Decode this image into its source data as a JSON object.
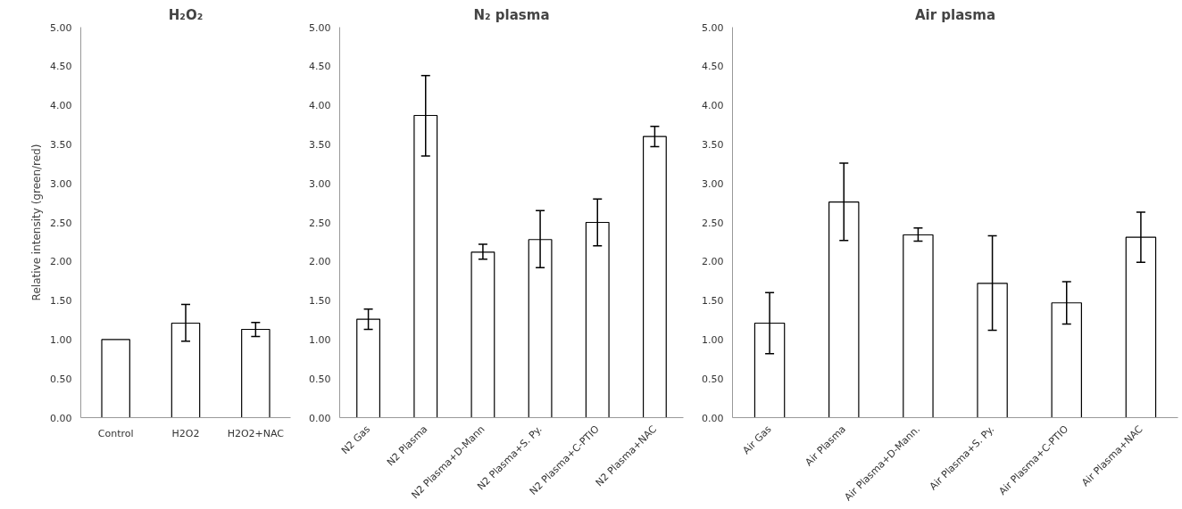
{
  "chart_data": [
    {
      "type": "bar",
      "title": "H₂O₂",
      "ylabel": "Relative intensity (green/red)",
      "categories": [
        "Control",
        "H2O2",
        "H2O2+NAC"
      ],
      "values": [
        1.0,
        1.21,
        1.13
      ],
      "errors": [
        null,
        [
          0.98,
          1.45
        ],
        [
          1.04,
          1.22
        ]
      ],
      "color": "#ffffff",
      "ylim": [
        0,
        5
      ],
      "yticks": [
        {
          "value": 0,
          "label": "0.00"
        },
        {
          "value": 0.5,
          "label": "0.50"
        },
        {
          "value": 1,
          "label": "1.00"
        },
        {
          "value": 1.5,
          "label": "1.50"
        },
        {
          "value": 2,
          "label": "2.00"
        },
        {
          "value": 2.5,
          "label": "2.50"
        },
        {
          "value": 3,
          "label": "3.00"
        },
        {
          "value": 3.5,
          "label": "3.50"
        },
        {
          "value": 4,
          "label": "4.00"
        },
        {
          "value": 4.5,
          "label": "4.50"
        },
        {
          "value": 5,
          "label": "5.00"
        }
      ],
      "grid": false
    },
    {
      "type": "bar",
      "title": "N₂ plasma",
      "categories": [
        "N2 Gas",
        "N2 Plasma",
        "N2 Plasma+D-Mann",
        "N2 Plasma+S. Py.",
        "N2 Plasma+C-PTIO",
        "N2 Plasma+NAC"
      ],
      "values": [
        1.26,
        3.87,
        2.12,
        2.28,
        2.5,
        3.6
      ],
      "errors": [
        [
          1.13,
          1.39
        ],
        [
          3.35,
          4.38
        ],
        [
          2.03,
          2.22
        ],
        [
          1.92,
          2.65
        ],
        [
          2.2,
          2.8
        ],
        [
          3.47,
          3.73
        ]
      ],
      "color": "#ffffff",
      "ylim": [
        0,
        5
      ],
      "yticks": [
        {
          "value": 0,
          "label": "0.00"
        },
        {
          "value": 0.5,
          "label": "0.50"
        },
        {
          "value": 1,
          "label": "1.00"
        },
        {
          "value": 1.5,
          "label": "1.50"
        },
        {
          "value": 2,
          "label": "2.00"
        },
        {
          "value": 2.5,
          "label": "2.50"
        },
        {
          "value": 3,
          "label": "3.00"
        },
        {
          "value": 3.5,
          "label": "3.50"
        },
        {
          "value": 4,
          "label": "4.00"
        },
        {
          "value": 4.5,
          "label": "4.50"
        },
        {
          "value": 5,
          "label": "5.00"
        }
      ],
      "grid": false
    },
    {
      "type": "bar",
      "title": "Air plasma",
      "categories": [
        "Air Gas",
        "Air Plasma",
        "Air Plasma+D-Mann.",
        "Air Plasma+S. Py.",
        "Air Plasma+C-PTIO",
        "Air Plasma+NAC"
      ],
      "values": [
        1.21,
        2.76,
        2.34,
        1.72,
        1.47,
        2.31
      ],
      "errors": [
        [
          0.82,
          1.6
        ],
        [
          2.27,
          3.26
        ],
        [
          2.26,
          2.43
        ],
        [
          1.12,
          2.33
        ],
        [
          1.2,
          1.74
        ],
        [
          1.99,
          2.63
        ]
      ],
      "color": "#ffffff",
      "ylim": [
        0,
        5
      ],
      "yticks": [
        {
          "value": 0,
          "label": "0.00"
        },
        {
          "value": 0.5,
          "label": "0.50"
        },
        {
          "value": 1,
          "label": "1.00"
        },
        {
          "value": 1.5,
          "label": "1.50"
        },
        {
          "value": 2,
          "label": "2.00"
        },
        {
          "value": 2.5,
          "label": "2.50"
        },
        {
          "value": 3,
          "label": "3.00"
        },
        {
          "value": 3.5,
          "label": "3.50"
        },
        {
          "value": 4,
          "label": "4.00"
        },
        {
          "value": 4.5,
          "label": "4.50"
        },
        {
          "value": 5,
          "label": "5.00"
        }
      ],
      "grid": false
    }
  ]
}
